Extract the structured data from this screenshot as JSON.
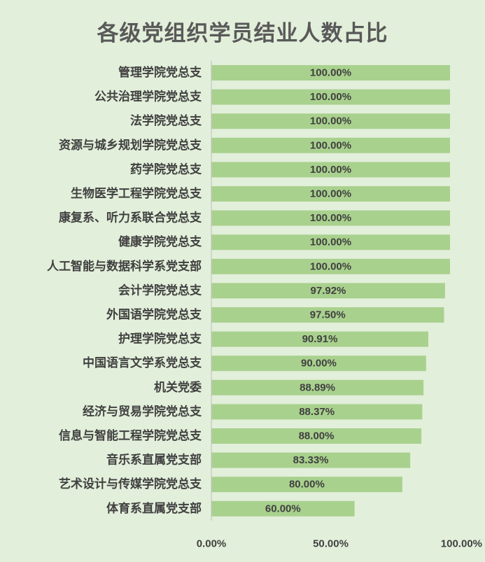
{
  "chart_data": {
    "type": "bar",
    "orientation": "horizontal",
    "title": "各级党组织学员结业人数占比",
    "categories": [
      "管理学院党总支",
      "公共治理学院党总支",
      "法学院党总支",
      "资源与城乡规划学院党总支",
      "药学院党总支",
      "生物医学工程学院党总支",
      "康复系、听力系联合党总支",
      "健康学院党总支",
      "人工智能与数据科学系党支部",
      "会计学院党总支",
      "外国语学院党总支",
      "护理学院党总支",
      "中国语言文学系党总支",
      "机关党委",
      "经济与贸易学院党总支",
      "信息与智能工程学院党总支",
      "音乐系直属党支部",
      "艺术设计与传媒学院党总支",
      "体育系直属党支部"
    ],
    "values": [
      100.0,
      100.0,
      100.0,
      100.0,
      100.0,
      100.0,
      100.0,
      100.0,
      100.0,
      97.92,
      97.5,
      90.91,
      90.0,
      88.89,
      88.37,
      88.0,
      83.33,
      80.0,
      60.0
    ],
    "data_labels": [
      "100.00%",
      "100.00%",
      "100.00%",
      "100.00%",
      "100.00%",
      "100.00%",
      "100.00%",
      "100.00%",
      "100.00%",
      "97.92%",
      "97.50%",
      "90.91%",
      "90.00%",
      "88.89%",
      "88.37%",
      "88.00%",
      "83.33%",
      "80.00%",
      "60.00%"
    ],
    "xlim": [
      0,
      100
    ],
    "x_ticks": [
      0,
      50,
      100
    ],
    "x_tick_labels": [
      "0.00%",
      "50.00%",
      "100.00%"
    ],
    "xlabel": "",
    "ylabel": "",
    "grid": false,
    "legend": "none",
    "colors": {
      "bar": "#a9d18e",
      "background": "#e2efda",
      "text": "#404040",
      "title": "#595959",
      "axis_line": "#bfbfbf"
    }
  }
}
